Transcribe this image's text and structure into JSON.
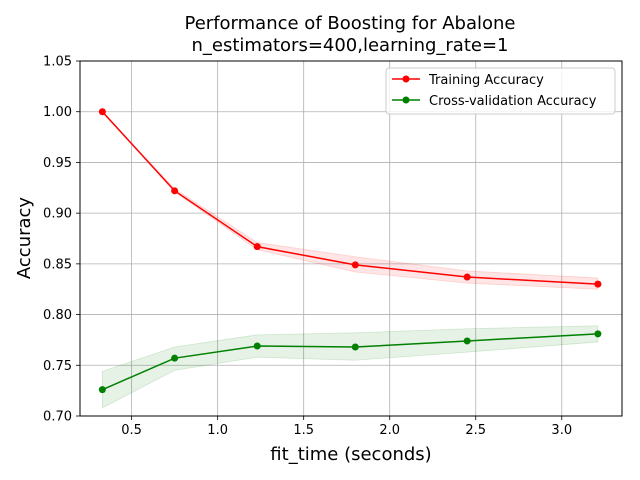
{
  "chart_data": {
    "type": "line",
    "title_line1": "Performance of Boosting for Abalone",
    "title_line2": "n_estimators=400,learning_rate=1",
    "xlabel": "fit_time (seconds)",
    "ylabel": "Accuracy",
    "xlim": [
      0.2,
      3.35
    ],
    "ylim": [
      0.7,
      1.05
    ],
    "xticks": [
      0.5,
      1.0,
      1.5,
      2.0,
      2.5,
      3.0
    ],
    "xtick_labels": [
      "0.5",
      "1.0",
      "1.5",
      "2.0",
      "2.5",
      "3.0"
    ],
    "yticks": [
      0.7,
      0.75,
      0.8,
      0.85,
      0.9,
      0.95,
      1.0,
      1.05
    ],
    "ytick_labels": [
      "0.70",
      "0.75",
      "0.80",
      "0.85",
      "0.90",
      "0.95",
      "1.00",
      "1.05"
    ],
    "grid": true,
    "legend_position": "top-right",
    "series": [
      {
        "name": "Training Accuracy",
        "color": "#ff0000",
        "band_color": "#ff0000",
        "x": [
          0.33,
          0.75,
          1.23,
          1.8,
          2.45,
          3.21
        ],
        "y": [
          1.0,
          0.922,
          0.867,
          0.849,
          0.837,
          0.83
        ],
        "lower": [
          1.0,
          0.921,
          0.864,
          0.842,
          0.831,
          0.825
        ],
        "upper": [
          1.0,
          0.924,
          0.871,
          0.857,
          0.843,
          0.836
        ]
      },
      {
        "name": "Cross-validation Accuracy",
        "color": "#008000",
        "band_color": "#008000",
        "x": [
          0.33,
          0.75,
          1.23,
          1.8,
          2.45,
          3.21
        ],
        "y": [
          0.726,
          0.757,
          0.769,
          0.768,
          0.774,
          0.781
        ],
        "lower": [
          0.708,
          0.745,
          0.758,
          0.755,
          0.763,
          0.773
        ],
        "upper": [
          0.744,
          0.768,
          0.78,
          0.782,
          0.786,
          0.789
        ]
      }
    ]
  }
}
